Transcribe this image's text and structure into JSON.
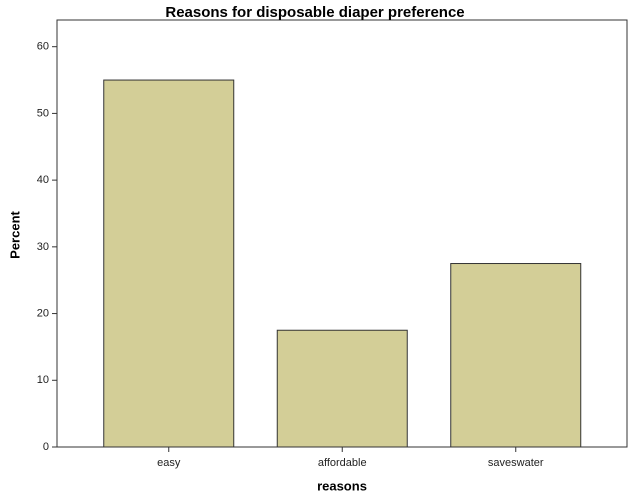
{
  "chart_data": {
    "type": "bar",
    "title": "Reasons for disposable diaper preference",
    "x_label": "reasons",
    "y_label": "Percent",
    "categories": [
      "easy",
      "affordable",
      "saveswater"
    ],
    "values": [
      55,
      17.5,
      27.5
    ],
    "color": "#d3ce97",
    "ylim": [
      0,
      64
    ],
    "yticks": [
      0,
      10,
      20,
      30,
      40,
      50,
      60
    ],
    "grid": false
  }
}
